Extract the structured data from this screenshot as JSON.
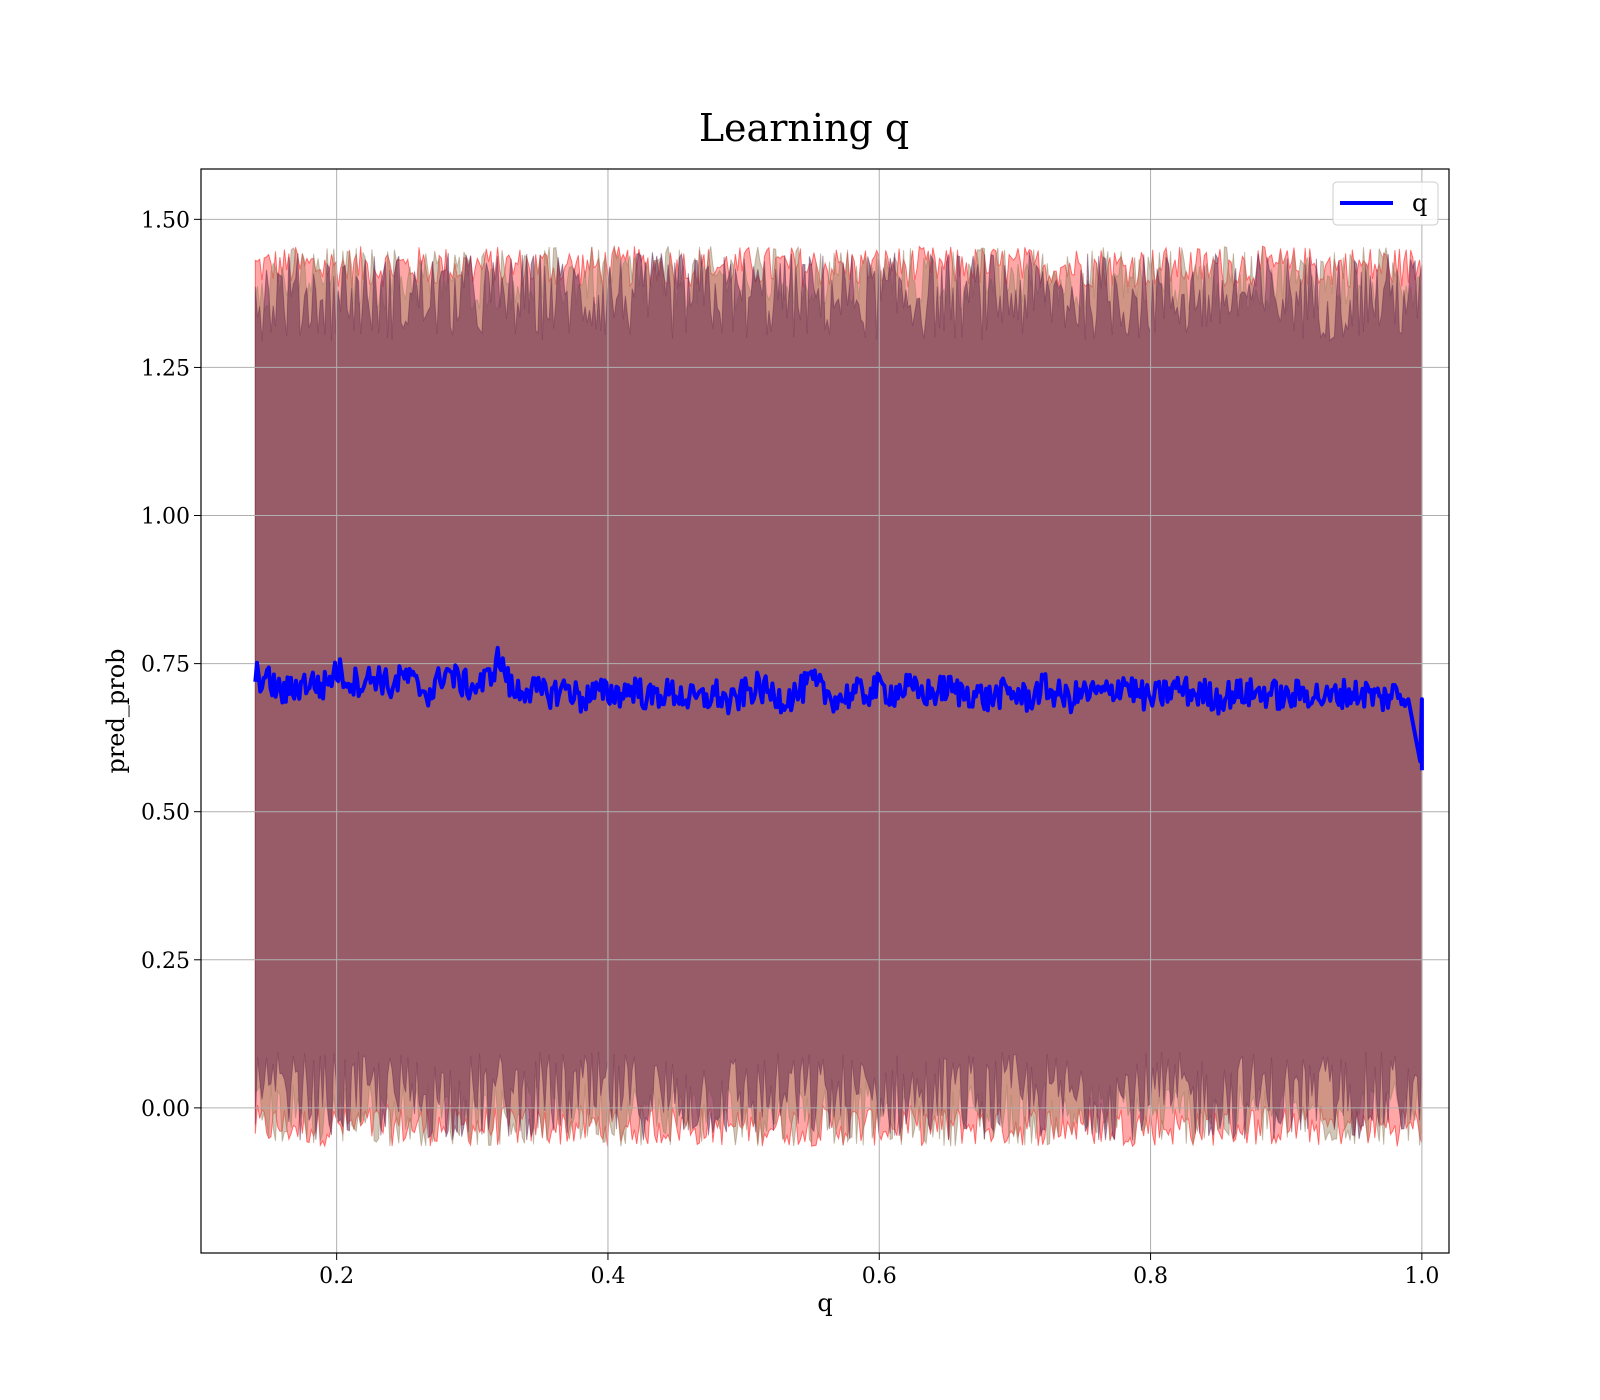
{
  "chart_data": {
    "type": "line",
    "title": "Learning q",
    "xlabel": "q",
    "ylabel": "pred_prob",
    "xlim": [
      0.1,
      1.02
    ],
    "ylim": [
      -0.245,
      1.585
    ],
    "xticks": [
      0.2,
      0.4,
      0.6,
      0.8,
      1.0
    ],
    "xtick_labels": [
      "0.2",
      "0.4",
      "0.6",
      "0.8",
      "1.0"
    ],
    "yticks": [
      0.0,
      0.25,
      0.5,
      0.75,
      1.0,
      1.25,
      1.5
    ],
    "ytick_labels": [
      "0.00",
      "0.25",
      "0.50",
      "0.75",
      "1.00",
      "1.25",
      "1.50"
    ],
    "grid": true,
    "legend": {
      "placement": "top-right",
      "entries": [
        "q"
      ]
    },
    "x_range": [
      0.14,
      1.0
    ],
    "series": [
      {
        "name": "q",
        "kind": "line",
        "color": "#0000ff",
        "x": [
          0.14,
          0.15,
          0.16,
          0.17,
          0.18,
          0.19,
          0.2,
          0.21,
          0.22,
          0.23,
          0.24,
          0.25,
          0.26,
          0.27,
          0.28,
          0.29,
          0.3,
          0.31,
          0.32,
          0.33,
          0.34,
          0.35,
          0.36,
          0.37,
          0.38,
          0.39,
          0.4,
          0.41,
          0.42,
          0.43,
          0.44,
          0.45,
          0.46,
          0.47,
          0.48,
          0.49,
          0.5,
          0.51,
          0.52,
          0.53,
          0.54,
          0.55,
          0.56,
          0.57,
          0.58,
          0.59,
          0.6,
          0.61,
          0.62,
          0.63,
          0.64,
          0.65,
          0.66,
          0.67,
          0.68,
          0.69,
          0.7,
          0.71,
          0.72,
          0.73,
          0.74,
          0.75,
          0.76,
          0.77,
          0.78,
          0.79,
          0.8,
          0.81,
          0.82,
          0.83,
          0.84,
          0.85,
          0.86,
          0.87,
          0.88,
          0.89,
          0.9,
          0.91,
          0.92,
          0.93,
          0.94,
          0.95,
          0.96,
          0.97,
          0.98,
          0.99,
          1.0
        ],
        "y": [
          0.73,
          0.72,
          0.7,
          0.71,
          0.72,
          0.71,
          0.74,
          0.72,
          0.72,
          0.73,
          0.71,
          0.73,
          0.71,
          0.7,
          0.74,
          0.72,
          0.71,
          0.72,
          0.76,
          0.7,
          0.71,
          0.7,
          0.7,
          0.71,
          0.69,
          0.7,
          0.7,
          0.7,
          0.71,
          0.69,
          0.7,
          0.7,
          0.69,
          0.69,
          0.7,
          0.68,
          0.7,
          0.71,
          0.7,
          0.69,
          0.7,
          0.72,
          0.7,
          0.69,
          0.7,
          0.7,
          0.71,
          0.7,
          0.71,
          0.7,
          0.7,
          0.71,
          0.7,
          0.7,
          0.69,
          0.7,
          0.7,
          0.69,
          0.71,
          0.7,
          0.69,
          0.7,
          0.7,
          0.7,
          0.72,
          0.7,
          0.69,
          0.7,
          0.71,
          0.7,
          0.7,
          0.69,
          0.7,
          0.7,
          0.7,
          0.7,
          0.69,
          0.7,
          0.7,
          0.69,
          0.7,
          0.7,
          0.7,
          0.69,
          0.7,
          0.69,
          0.57
        ]
      }
    ],
    "bands": [
      {
        "kind": "fill_between",
        "color": "#ff0000",
        "opacity": 0.35,
        "lower": -0.03,
        "upper": 1.42
      },
      {
        "kind": "fill_between",
        "color": "#9a8060",
        "opacity": 0.45,
        "lower": -0.01,
        "upper": 1.4
      },
      {
        "kind": "fill_between",
        "color": "#6a2e52",
        "opacity": 0.55,
        "lower": 0.02,
        "upper": 1.37
      }
    ]
  },
  "colors": {
    "line": "#0000ff",
    "band_outer": "#ff0000",
    "band_body": "#a17078",
    "grid": "#b0b0b0",
    "axes": "#000000"
  }
}
